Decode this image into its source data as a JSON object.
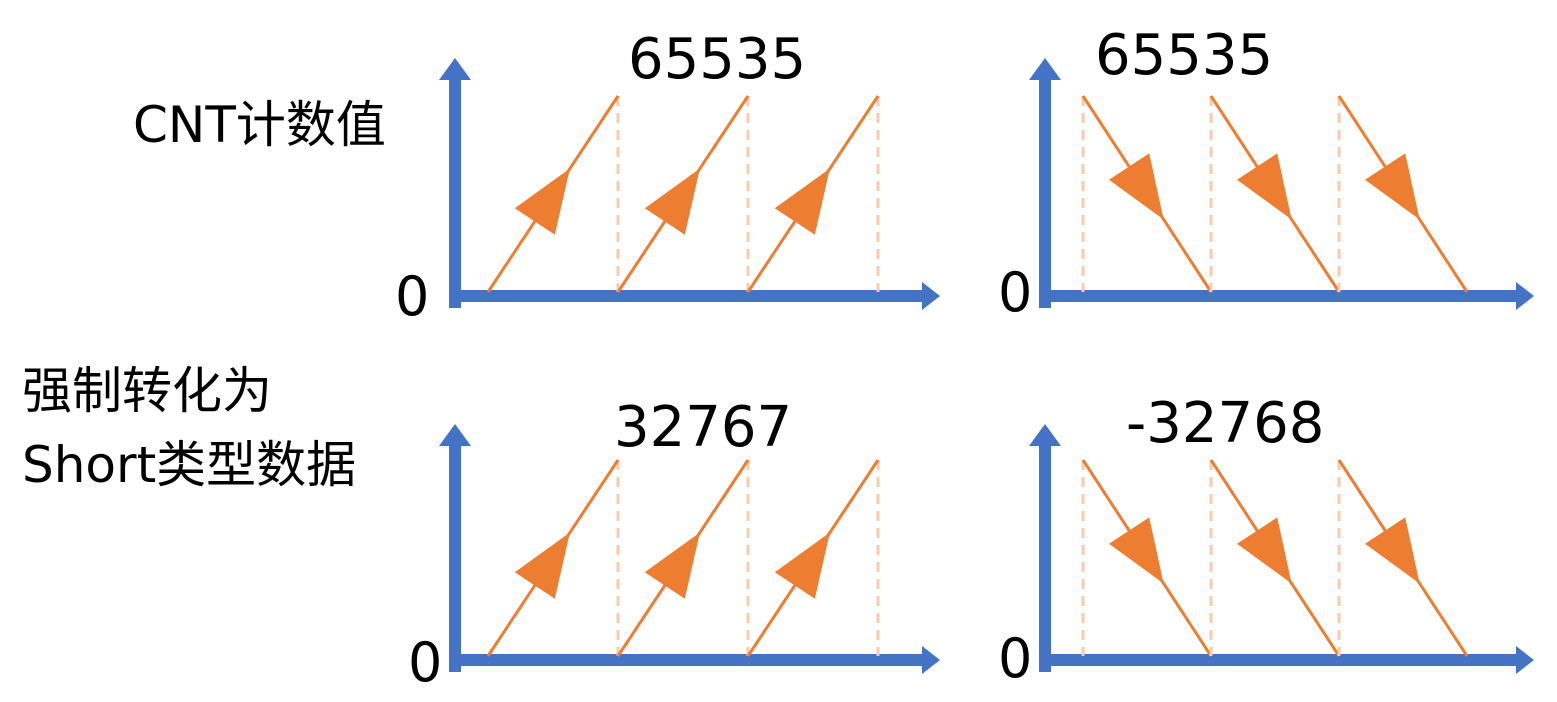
{
  "colors": {
    "axis": "#4472C4",
    "wave": "#ED7D31",
    "guide": "#F8CBAD",
    "text": "#000000"
  },
  "row_labels": {
    "top": "CNT计数值",
    "bottom_line1": "强制转化为",
    "bottom_line2": "Short类型数据"
  },
  "panels": [
    {
      "id": "top-left",
      "direction": "up",
      "peak_label": "65535",
      "zero_label": "0",
      "teeth": 3
    },
    {
      "id": "top-right",
      "direction": "down",
      "peak_label": "65535",
      "zero_label": "0",
      "teeth": 3
    },
    {
      "id": "bottom-left",
      "direction": "up",
      "peak_label": "32767",
      "zero_label": "0",
      "teeth": 3
    },
    {
      "id": "bottom-right",
      "direction": "down",
      "peak_label": "-32768",
      "zero_label": "0",
      "teeth": 3
    }
  ]
}
